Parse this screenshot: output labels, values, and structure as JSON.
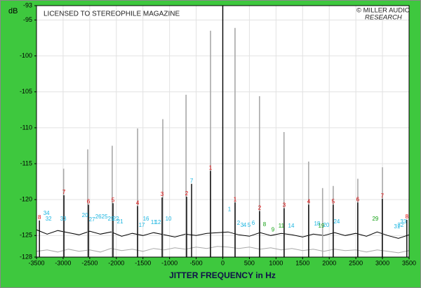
{
  "chart_data": {
    "type": "line",
    "ylabel": "dB",
    "xlabel": "JITTER FREQUENCY in Hz",
    "watermark": "LICENSED TO STEREOPHILE MAGAZINE",
    "credit": [
      "© MILLER AUDIO",
      "RESEARCH"
    ],
    "xlim": [
      -3500,
      3500
    ],
    "xticks": [
      -3500,
      -3000,
      -2500,
      -2000,
      -1500,
      -1000,
      -500,
      0,
      500,
      1000,
      1500,
      2000,
      2500,
      3000,
      3500
    ],
    "ylim": [
      -128,
      -93
    ],
    "yticks": [
      -128,
      -125,
      -120,
      -115,
      -110,
      -105,
      -100,
      -95,
      -93
    ],
    "grid": true,
    "series": [
      {
        "style": "trace",
        "color": "#a8a8a8",
        "x": [
          -3500,
          -3300,
          -3100,
          -2900,
          -2700,
          -2500,
          -2300,
          -2100,
          -1900,
          -1700,
          -1500,
          -1300,
          -1100,
          -900,
          -700,
          -500,
          -300,
          -100,
          100,
          300,
          500,
          700,
          900,
          1100,
          1300,
          1500,
          1700,
          1900,
          2100,
          2300,
          2500,
          2700,
          2900,
          3100,
          3300,
          3500
        ],
        "values": [
          -127.2,
          -127.0,
          -127.3,
          -126.9,
          -127.2,
          -127.0,
          -127.3,
          -126.8,
          -127.1,
          -126.9,
          -127.2,
          -126.8,
          -127.0,
          -126.7,
          -126.9,
          -126.6,
          -126.8,
          -126.5,
          -126.6,
          -126.8,
          -126.6,
          -126.9,
          -126.7,
          -127.0,
          -126.8,
          -127.1,
          -126.9,
          -127.2,
          -126.9,
          -127.1,
          -127.0,
          -127.3,
          -127.0,
          -127.2,
          -127.4,
          -127.1
        ]
      },
      {
        "style": "trace",
        "color": "#000000",
        "x": [
          -3500,
          -3300,
          -3100,
          -2900,
          -2700,
          -2500,
          -2300,
          -2100,
          -1900,
          -1700,
          -1500,
          -1300,
          -1100,
          -900,
          -700,
          -500,
          -300,
          -100,
          100,
          300,
          500,
          700,
          900,
          1100,
          1300,
          1500,
          1700,
          1900,
          2100,
          2300,
          2500,
          2700,
          2900,
          3100,
          3300,
          3500
        ],
        "values": [
          -124.2,
          -124.8,
          -124.3,
          -124.6,
          -124.9,
          -124.4,
          -124.8,
          -124.5,
          -125.1,
          -124.7,
          -125.0,
          -124.6,
          -124.9,
          -125.2,
          -124.8,
          -125.0,
          -124.7,
          -124.6,
          -124.5,
          -124.9,
          -125.1,
          -124.6,
          -125.0,
          -124.7,
          -124.9,
          -125.2,
          -124.8,
          -125.0,
          -124.6,
          -125.0,
          -124.7,
          -125.1,
          -124.5,
          -125.0,
          -125.4,
          -124.9
        ]
      },
      {
        "style": "spikes",
        "color": "#a8a8a8",
        "x": [
          -2990,
          -2537,
          -2077,
          -1600,
          -1127,
          -690,
          -230,
          230,
          690,
          1150,
          1613,
          1875,
          2075,
          2537,
          3000
        ],
        "values": [
          -115.7,
          -113.0,
          -112.5,
          -110.1,
          -108.8,
          -105.4,
          -96.5,
          -96.1,
          -105.6,
          -110.6,
          -114.7,
          -118.4,
          -118.1,
          -117.1,
          -115.5
        ]
      },
      {
        "style": "spikes",
        "color": "#000000",
        "x": [
          -3445,
          -2984,
          -2523,
          -2062,
          -1601,
          -1140,
          -679,
          -586,
          -231,
          0,
          231,
          692,
          1153,
          1614,
          2075,
          2536,
          2997,
          3458
        ],
        "values": [
          -122.9,
          -119.4,
          -120.7,
          -120.5,
          -120.9,
          -119.7,
          -119.6,
          -117.8,
          -116.0,
          -93,
          -120.4,
          -121.6,
          -121.2,
          -120.7,
          -120.7,
          -120.4,
          -119.9,
          -122.8
        ]
      }
    ],
    "annotations": [
      {
        "text": "8",
        "x": -3445,
        "y": -122.9,
        "color": "#e00000"
      },
      {
        "text": "7",
        "x": -2984,
        "y": -119.4,
        "color": "#e00000"
      },
      {
        "text": "6",
        "x": -2523,
        "y": -120.7,
        "color": "#e00000"
      },
      {
        "text": "5",
        "x": -2062,
        "y": -120.5,
        "color": "#e00000"
      },
      {
        "text": "4",
        "x": -1601,
        "y": -120.9,
        "color": "#e00000"
      },
      {
        "text": "3",
        "x": -1140,
        "y": -119.7,
        "color": "#e00000"
      },
      {
        "text": "2",
        "x": -679,
        "y": -119.6,
        "color": "#e00000"
      },
      {
        "text": "1",
        "x": -231,
        "y": -116.0,
        "color": "#e00000"
      },
      {
        "text": "1",
        "x": 231,
        "y": -120.4,
        "color": "#e00000"
      },
      {
        "text": "2",
        "x": 692,
        "y": -121.6,
        "color": "#e00000"
      },
      {
        "text": "3",
        "x": 1153,
        "y": -121.2,
        "color": "#e00000"
      },
      {
        "text": "4",
        "x": 1614,
        "y": -120.7,
        "color": "#e00000"
      },
      {
        "text": "5",
        "x": 2075,
        "y": -120.7,
        "color": "#e00000"
      },
      {
        "text": "6",
        "x": 2536,
        "y": -120.4,
        "color": "#e00000"
      },
      {
        "text": "7",
        "x": 2997,
        "y": -119.9,
        "color": "#e00000"
      },
      {
        "text": "8",
        "x": 3458,
        "y": -122.8,
        "color": "#e00000"
      },
      {
        "text": "34",
        "x": -3313,
        "y": -122.3,
        "color": "#19b4e0"
      },
      {
        "text": "32",
        "x": -3274,
        "y": -123.1,
        "color": "#19b4e0"
      },
      {
        "text": "33",
        "x": -2997,
        "y": -123.1,
        "color": "#19b4e0"
      },
      {
        "text": "20",
        "x": -2589,
        "y": -122.6,
        "color": "#19b4e0"
      },
      {
        "text": "27",
        "x": -2457,
        "y": -123.2,
        "color": "#19b4e0"
      },
      {
        "text": "26",
        "x": -2338,
        "y": -122.8,
        "color": "#19b4e0"
      },
      {
        "text": "25",
        "x": -2220,
        "y": -122.8,
        "color": "#19b4e0"
      },
      {
        "text": "29",
        "x": -2101,
        "y": -123.1,
        "color": "#19b4e0"
      },
      {
        "text": "22",
        "x": -2009,
        "y": -123.1,
        "color": "#19b4e0"
      },
      {
        "text": "21",
        "x": -1930,
        "y": -123.5,
        "color": "#19b4e0"
      },
      {
        "text": "17",
        "x": -1522,
        "y": -124.0,
        "color": "#19b4e0"
      },
      {
        "text": "16",
        "x": -1443,
        "y": -123.1,
        "color": "#19b4e0"
      },
      {
        "text": "11",
        "x": -1298,
        "y": -123.6,
        "color": "#19b4e0"
      },
      {
        "text": "12",
        "x": -1219,
        "y": -123.6,
        "color": "#19b4e0"
      },
      {
        "text": "10",
        "x": -1021,
        "y": -123.1,
        "color": "#19b4e0"
      },
      {
        "text": "7",
        "x": -586,
        "y": -117.8,
        "color": "#19b4e0"
      },
      {
        "text": "1",
        "x": 125,
        "y": -121.8,
        "color": "#19b4e0"
      },
      {
        "text": "2",
        "x": 296,
        "y": -123.7,
        "color": "#19b4e0"
      },
      {
        "text": "3",
        "x": 362,
        "y": -124.0,
        "color": "#19b4e0"
      },
      {
        "text": "4",
        "x": 415,
        "y": -124.0,
        "color": "#19b4e0"
      },
      {
        "text": "5",
        "x": 494,
        "y": -124.0,
        "color": "#19b4e0"
      },
      {
        "text": "6",
        "x": 573,
        "y": -123.7,
        "color": "#19b4e0"
      },
      {
        "text": "8",
        "x": 784,
        "y": -123.9,
        "color": "#10a010"
      },
      {
        "text": "9",
        "x": 942,
        "y": -124.6,
        "color": "#10a010"
      },
      {
        "text": "11",
        "x": 1100,
        "y": -124.1,
        "color": "#10a010"
      },
      {
        "text": "14",
        "x": 1285,
        "y": -124.1,
        "color": "#19b4e0"
      },
      {
        "text": "18",
        "x": 1772,
        "y": -123.8,
        "color": "#19b4e0"
      },
      {
        "text": "19",
        "x": 1851,
        "y": -124.1,
        "color": "#10a010"
      },
      {
        "text": "20",
        "x": 1943,
        "y": -124.0,
        "color": "#19b4e0"
      },
      {
        "text": "24",
        "x": 2141,
        "y": -123.5,
        "color": "#19b4e0"
      },
      {
        "text": "29",
        "x": 2866,
        "y": -123.1,
        "color": "#10a010"
      },
      {
        "text": "31",
        "x": 3274,
        "y": -124.2,
        "color": "#19b4e0"
      },
      {
        "text": "32",
        "x": 3340,
        "y": -124.0,
        "color": "#19b4e0"
      },
      {
        "text": "33",
        "x": 3393,
        "y": -123.5,
        "color": "#19b4e0"
      }
    ]
  }
}
